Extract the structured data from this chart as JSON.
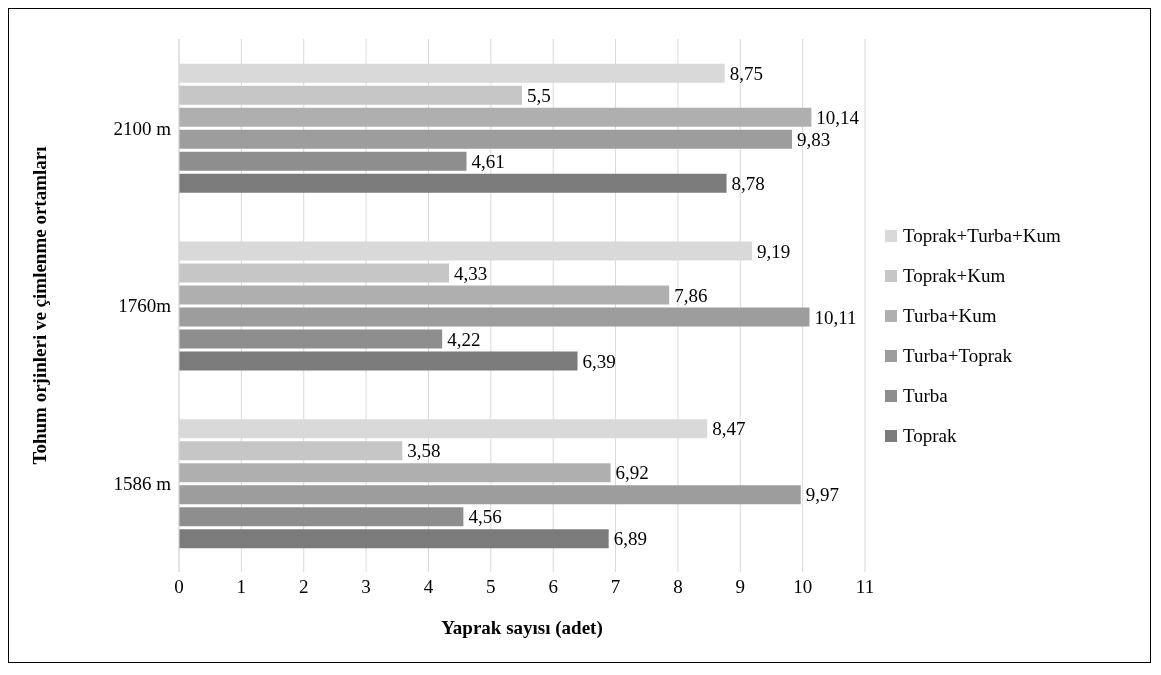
{
  "chart_data": {
    "type": "bar",
    "orientation": "horizontal",
    "xlabel": "Yaprak sayısı (adet)",
    "ylabel": "Tohum orjinleri ve çimlenme ortamları",
    "categories": [
      "2100 m",
      "1760m",
      "1586 m"
    ],
    "series": [
      {
        "name": "Toprak+Turba+Kum",
        "color": "#d9d9d9",
        "values": [
          8.75,
          9.19,
          8.47
        ],
        "value_labels": [
          "8,75",
          "9,19",
          "8,47"
        ]
      },
      {
        "name": "Toprak+Kum",
        "color": "#c6c6c6",
        "values": [
          5.5,
          4.33,
          3.58
        ],
        "value_labels": [
          "5,5",
          "4,33",
          "3,58"
        ]
      },
      {
        "name": "Turba+Kum",
        "color": "#afafaf",
        "values": [
          10.14,
          7.86,
          6.92
        ],
        "value_labels": [
          "10,14",
          "7,86",
          "6,92"
        ]
      },
      {
        "name": "Turba+Toprak",
        "color": "#9d9d9d",
        "values": [
          9.83,
          10.11,
          9.97
        ],
        "value_labels": [
          "9,83",
          "10,11",
          "9,97"
        ]
      },
      {
        "name": "Turba",
        "color": "#8e8e8e",
        "values": [
          4.61,
          4.22,
          4.56
        ],
        "value_labels": [
          "4,61",
          "4,22",
          "4,56"
        ]
      },
      {
        "name": "Toprak",
        "color": "#7b7b7b",
        "values": [
          8.78,
          6.39,
          6.89
        ],
        "value_labels": [
          "8,78",
          "6,39",
          "6,89"
        ]
      }
    ],
    "xlim": [
      0,
      11
    ],
    "xticks": [
      0,
      1,
      2,
      3,
      4,
      5,
      6,
      7,
      8,
      9,
      10,
      11
    ],
    "grid": "x",
    "legend": "right"
  }
}
